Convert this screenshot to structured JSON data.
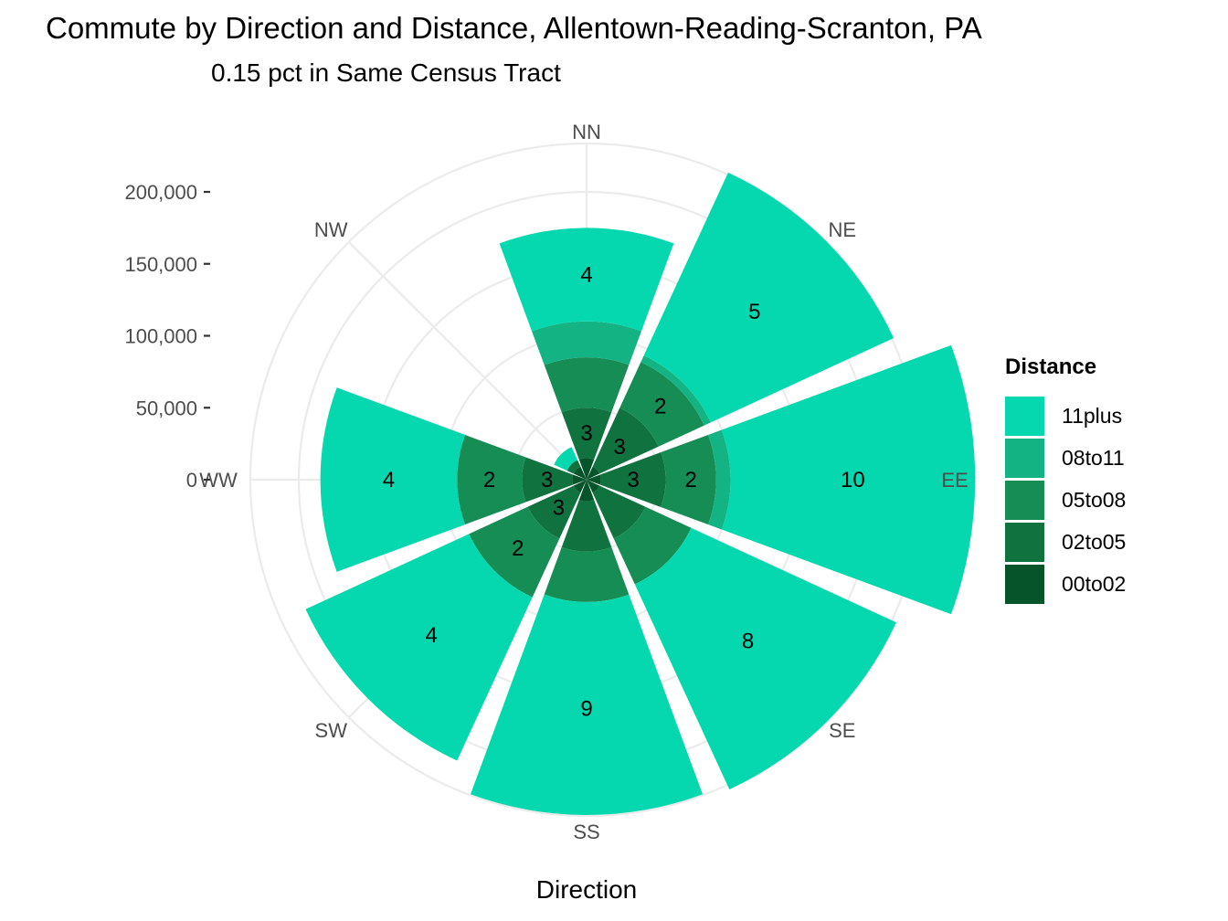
{
  "chart_data": {
    "type": "polar-stacked-bar",
    "title": "Commute by Direction and Distance, Allentown-Reading-Scranton, PA",
    "subtitle": "0.15 pct in Same Census Tract",
    "xlabel": "Direction",
    "ylabel": "",
    "directions": [
      "NN",
      "NE",
      "EE",
      "SE",
      "SS",
      "SW",
      "WW",
      "NW"
    ],
    "y_ticks": [
      0,
      50000,
      100000,
      150000,
      200000
    ],
    "y_tick_labels": [
      "0",
      "50,000",
      "100,000",
      "150,000",
      "200,000"
    ],
    "ylim": [
      0,
      200000
    ],
    "legend_title": "Distance",
    "legend_position": "right",
    "grid": true,
    "series": [
      {
        "name": "00to02",
        "color": "#06542a",
        "values": [
          15000,
          10000,
          10000,
          10000,
          15000,
          10000,
          10000,
          10000
        ],
        "labels": [
          "",
          "",
          "",
          "",
          "",
          "",
          "",
          ""
        ]
      },
      {
        "name": "02to05",
        "color": "#10733f",
        "values": [
          35000,
          45000,
          45000,
          35000,
          35000,
          35000,
          35000,
          5000
        ],
        "labels": [
          "3",
          "3",
          "3",
          "",
          "",
          "3",
          "3",
          ""
        ]
      },
      {
        "name": "05to08",
        "color": "#168d55",
        "values": [
          35000,
          35000,
          35000,
          35000,
          35000,
          45000,
          45000,
          0
        ],
        "labels": [
          "",
          "2",
          "2",
          "",
          "",
          "2",
          "2",
          ""
        ]
      },
      {
        "name": "08to11",
        "color": "#14b383",
        "values": [
          25000,
          5000,
          10000,
          0,
          0,
          0,
          0,
          0
        ],
        "labels": [
          "",
          "",
          "",
          "",
          "",
          "",
          "",
          ""
        ]
      },
      {
        "name": "11plus",
        "color": "#05d8ae",
        "values": [
          65000,
          140000,
          170000,
          157000,
          148000,
          125000,
          95000,
          10000
        ],
        "labels": [
          "4",
          "5",
          "10",
          "8",
          "9",
          "4",
          "4",
          ""
        ]
      }
    ]
  }
}
